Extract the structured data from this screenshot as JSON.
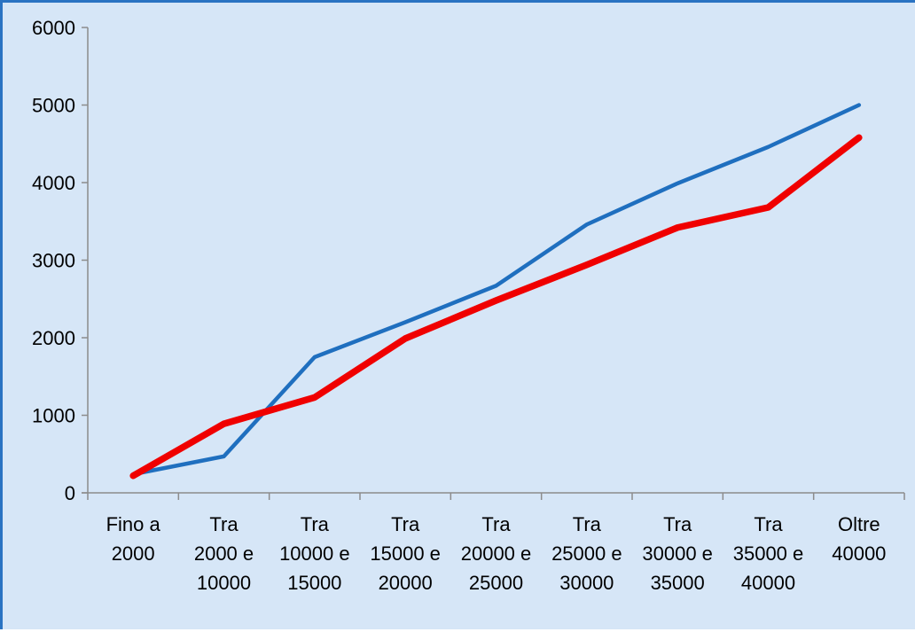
{
  "colors": {
    "background": "#d6e6f7",
    "frame_border": "#2a73c2",
    "series_blue": "#1f6fbf",
    "series_red": "#f00000",
    "axis": "#8c8c8c"
  },
  "chart_data": {
    "type": "line",
    "categories": [
      [
        "Fino a",
        "2000"
      ],
      [
        "Tra",
        "2000 e",
        "10000"
      ],
      [
        "Tra",
        "10000 e",
        "15000"
      ],
      [
        "Tra",
        "15000 e",
        "20000"
      ],
      [
        "Tra",
        "20000 e",
        "25000"
      ],
      [
        "Tra",
        "25000 e",
        "30000"
      ],
      [
        "Tra",
        "30000 e",
        "35000"
      ],
      [
        "Tra",
        "35000 e",
        "40000"
      ],
      [
        "Oltre",
        "40000"
      ]
    ],
    "series": [
      {
        "color": "#1f6fbf",
        "values": [
          240,
          470,
          1750,
          2200,
          2670,
          3460,
          3990,
          4460,
          5000
        ]
      },
      {
        "color": "#f00000",
        "values": [
          220,
          890,
          1230,
          1990,
          2480,
          2940,
          3420,
          3680,
          4580
        ]
      }
    ],
    "y_ticks": [
      "0",
      "1000",
      "2000",
      "3000",
      "4000",
      "5000",
      "6000"
    ],
    "ylim": [
      0,
      6000
    ],
    "title": "",
    "xlabel": "",
    "ylabel": "",
    "grid": false,
    "legend": "none"
  }
}
